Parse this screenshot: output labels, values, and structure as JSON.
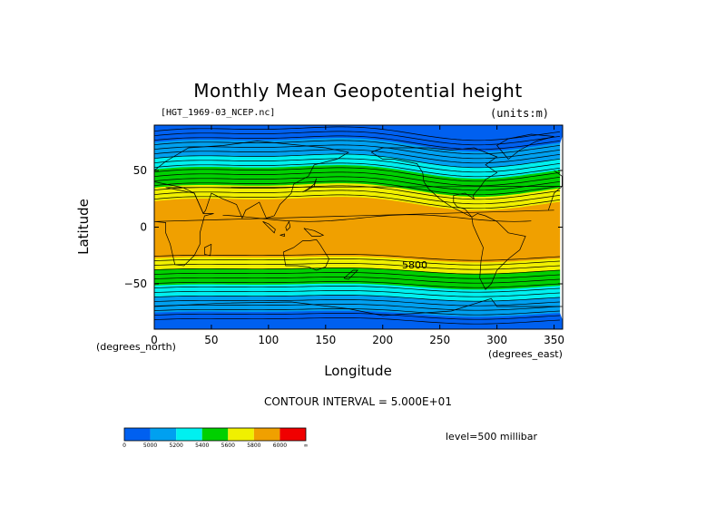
{
  "figure": {
    "file_label": "[HGT_1969-03_NCEP.nc]",
    "units_label": "(units:m)",
    "x_unit_label": "(degrees_east)",
    "y_unit_label": "(degrees_north)",
    "contour_interval": "CONTOUR INTERVAL = 5.000E+01",
    "level": "level=500 millibar"
  },
  "chart_data": {
    "type": "heatmap",
    "title": "Monthly Mean Geopotential height",
    "xlabel": "Longitude",
    "ylabel": "Latitude",
    "xlim": [
      0,
      357.5
    ],
    "ylim": [
      -90,
      90
    ],
    "x_ticks": [
      0,
      50,
      100,
      150,
      200,
      250,
      300,
      350
    ],
    "y_ticks": [
      50,
      0,
      -50
    ],
    "y_tick_labels": [
      "50",
      "0",
      "−50"
    ],
    "contour_labels": [
      {
        "text": "5800",
        "lon": 228,
        "lat": -33
      }
    ],
    "colorbar": {
      "tick_labels": [
        "0",
        "5000",
        "5200",
        "5400",
        "5600",
        "5800",
        "6000",
        "∞"
      ],
      "colors": [
        "#0060f0",
        "#00a0f0",
        "#00f0f0",
        "#00d000",
        "#f0f000",
        "#f0a000",
        "#f00000"
      ]
    },
    "bands": [
      {
        "lat_min": 74,
        "lat_max": 90,
        "color": "#0060f0"
      },
      {
        "lat_min": 60,
        "lat_max": 74,
        "color": "#00a0f0"
      },
      {
        "lat_min": 50,
        "lat_max": 60,
        "color": "#00f0f0"
      },
      {
        "lat_min": 34,
        "lat_max": 50,
        "color": "#00d000"
      },
      {
        "lat_min": 22,
        "lat_max": 34,
        "color": "#f0f000"
      },
      {
        "lat_min": -28,
        "lat_max": 22,
        "color": "#f0a000"
      },
      {
        "lat_min": -38,
        "lat_max": -28,
        "color": "#f0f000"
      },
      {
        "lat_min": -52,
        "lat_max": -38,
        "color": "#00d000"
      },
      {
        "lat_min": -62,
        "lat_max": -52,
        "color": "#00f0f0"
      },
      {
        "lat_min": -76,
        "lat_max": -62,
        "color": "#00a0f0"
      },
      {
        "lat_min": -90,
        "lat_max": -76,
        "color": "#0060f0"
      }
    ]
  }
}
